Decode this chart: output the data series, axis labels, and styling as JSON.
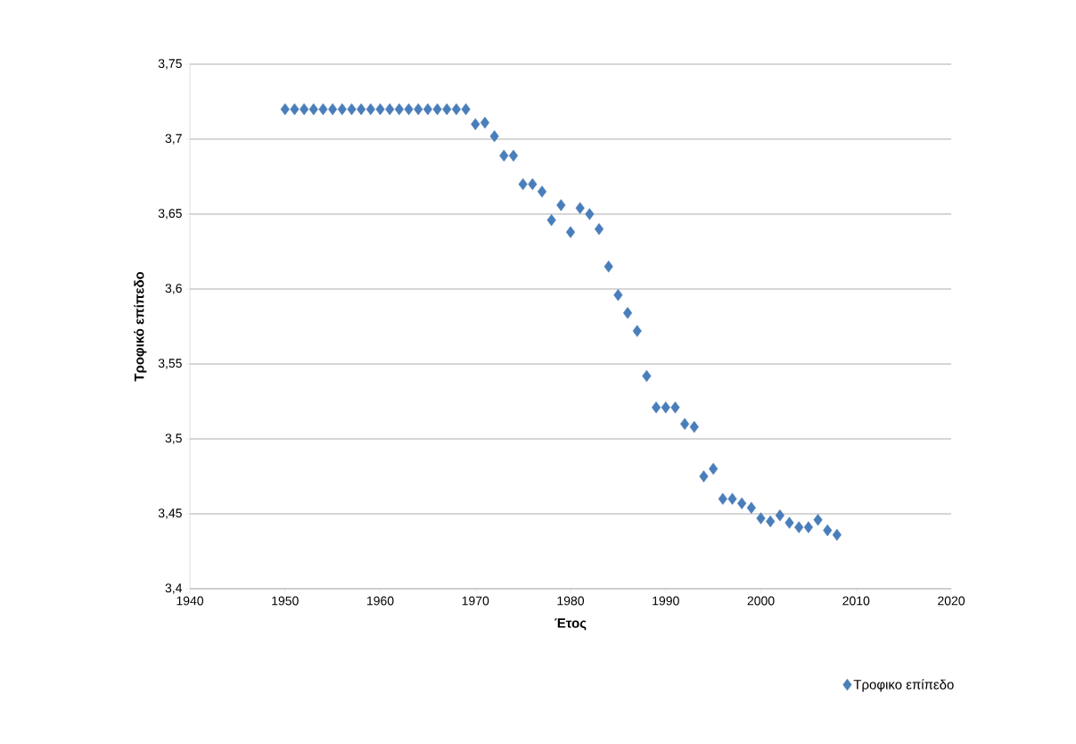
{
  "chart_data": {
    "type": "scatter",
    "xlabel": "Έτος",
    "ylabel": "Τροφικό επίπεδο",
    "x": [
      1950,
      1951,
      1952,
      1953,
      1954,
      1955,
      1956,
      1957,
      1958,
      1959,
      1960,
      1961,
      1962,
      1963,
      1964,
      1965,
      1966,
      1967,
      1968,
      1969,
      1970,
      1971,
      1972,
      1973,
      1974,
      1975,
      1976,
      1977,
      1978,
      1979,
      1980,
      1981,
      1982,
      1983,
      1984,
      1985,
      1986,
      1987,
      1988,
      1989,
      1990,
      1991,
      1992,
      1993,
      1994,
      1995,
      1996,
      1997,
      1998,
      1999,
      2000,
      2001,
      2002,
      2003,
      2004,
      2005,
      2006,
      2007,
      2008
    ],
    "series": [
      {
        "name": "Τροφικο επίπεδο",
        "color": "#4a7ebb",
        "values": [
          3.72,
          3.72,
          3.72,
          3.72,
          3.72,
          3.72,
          3.72,
          3.72,
          3.72,
          3.72,
          3.72,
          3.72,
          3.72,
          3.72,
          3.72,
          3.72,
          3.72,
          3.72,
          3.72,
          3.72,
          3.71,
          3.711,
          3.702,
          3.689,
          3.689,
          3.67,
          3.67,
          3.665,
          3.646,
          3.656,
          3.638,
          3.654,
          3.65,
          3.64,
          3.615,
          3.596,
          3.584,
          3.572,
          3.542,
          3.521,
          3.521,
          3.521,
          3.51,
          3.508,
          3.475,
          3.48,
          3.46,
          3.46,
          3.457,
          3.454,
          3.447,
          3.445,
          3.449,
          3.444,
          3.441,
          3.441,
          3.446,
          3.439,
          3.436
        ]
      }
    ],
    "xlim": [
      1940,
      2020
    ],
    "ylim": [
      3.4,
      3.75
    ],
    "xticks": [
      1940,
      1950,
      1960,
      1970,
      1980,
      1990,
      2000,
      2010,
      2020
    ],
    "yticks": [
      {
        "value": 3.4,
        "label": "3,4"
      },
      {
        "value": 3.45,
        "label": "3,45"
      },
      {
        "value": 3.5,
        "label": "3,5"
      },
      {
        "value": 3.55,
        "label": "3,55"
      },
      {
        "value": 3.6,
        "label": "3,6"
      },
      {
        "value": 3.65,
        "label": "3,65"
      },
      {
        "value": 3.7,
        "label": "3,7"
      },
      {
        "value": 3.75,
        "label": "3,75"
      }
    ],
    "grid": "y",
    "legend": "bottom right",
    "marker": "diamond"
  }
}
